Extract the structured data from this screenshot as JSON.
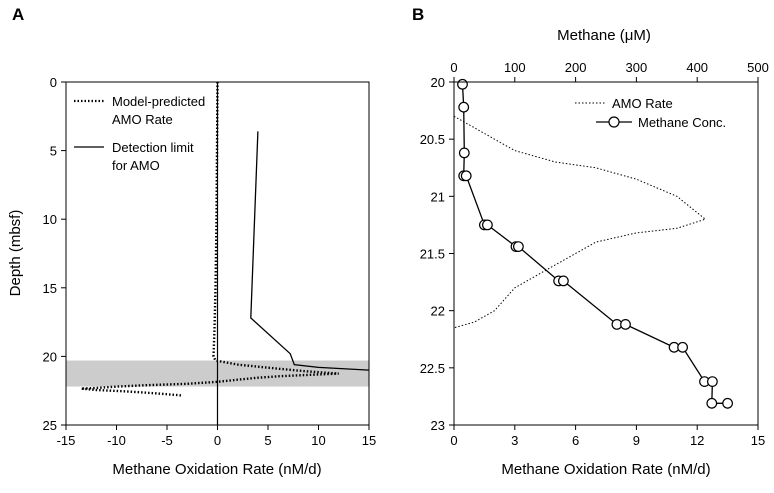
{
  "chart_data": [
    {
      "panel_label": "A",
      "type": "line",
      "xlabel": "Methane Oxidation Rate (nM/d)",
      "ylabel": "Depth (mbsf)",
      "xlim": [
        -15,
        15
      ],
      "ylim": [
        0,
        25
      ],
      "y_inverted": true,
      "x_ticks": [
        "-15",
        "-10",
        "-5",
        "0",
        "5",
        "10",
        "15"
      ],
      "y_ticks": [
        "0",
        "5",
        "10",
        "15",
        "20",
        "25"
      ],
      "shaded_depth_band": [
        20.3,
        22.2
      ],
      "legend": {
        "placement": "top-left",
        "entries": [
          {
            "line1": "Model-predicted",
            "line2": "AMO Rate",
            "style": "dotted"
          },
          {
            "line1": "Detection limit",
            "line2": "for AMO",
            "style": "solid"
          }
        ]
      },
      "series": [
        {
          "style": "dotted",
          "points": [
            [
              0,
              0
            ],
            [
              -0.05,
              5
            ],
            [
              -0.1,
              10
            ],
            [
              -0.2,
              15
            ],
            [
              -0.3,
              18
            ],
            [
              -0.4,
              20
            ],
            [
              -0.2,
              20.3
            ],
            [
              2,
              20.6
            ],
            [
              6,
              20.9
            ],
            [
              9,
              21.1
            ],
            [
              12,
              21.25
            ],
            [
              9,
              21.35
            ],
            [
              6,
              21.45
            ],
            [
              4,
              21.55
            ],
            [
              2,
              21.7
            ],
            [
              0,
              21.85
            ],
            [
              -3,
              22
            ],
            [
              -7,
              22.1
            ],
            [
              -10,
              22.2
            ],
            [
              -12,
              22.3
            ],
            [
              -13.5,
              22.35
            ],
            [
              -12,
              22.45
            ],
            [
              -9,
              22.55
            ],
            [
              -6,
              22.7
            ],
            [
              -3.5,
              22.85
            ]
          ]
        },
        {
          "style": "solid",
          "points": [
            [
              4,
              3.6
            ],
            [
              3.3,
              17.2
            ],
            [
              7.2,
              19.8
            ],
            [
              7.6,
              20.6
            ],
            [
              10,
              20.8
            ],
            [
              15,
              21
            ]
          ]
        }
      ]
    },
    {
      "panel_label": "B",
      "type": "line",
      "xlabel": "Methane Oxidation Rate (nM/d)",
      "x2label": "Methane (μM)",
      "xlim": [
        0,
        15
      ],
      "x2lim": [
        0,
        500
      ],
      "ylim": [
        20,
        23
      ],
      "y_inverted": true,
      "x_ticks": [
        "0",
        "3",
        "6",
        "9",
        "12",
        "15"
      ],
      "x2_ticks": [
        "0",
        "100",
        "200",
        "300",
        "400",
        "500"
      ],
      "y_ticks": [
        "20",
        "20.5",
        "21",
        "21.5",
        "22",
        "22.5",
        "23"
      ],
      "legend": {
        "placement": "top-right",
        "entries": [
          {
            "label": "AMO Rate",
            "style": "dotted"
          },
          {
            "label": "Methane Conc.",
            "style": "solid-circle-markers"
          }
        ]
      },
      "series": [
        {
          "name": "AMO Rate",
          "style": "dotted",
          "points": [
            [
              0,
              20.3
            ],
            [
              1,
              20.4
            ],
            [
              2,
              20.5
            ],
            [
              3,
              20.6
            ],
            [
              5,
              20.7
            ],
            [
              7,
              20.75
            ],
            [
              9,
              20.85
            ],
            [
              11,
              21
            ],
            [
              12.4,
              21.2
            ],
            [
              11,
              21.28
            ],
            [
              9,
              21.32
            ],
            [
              7,
              21.4
            ],
            [
              5,
              21.6
            ],
            [
              3,
              21.8
            ],
            [
              2,
              22
            ],
            [
              1,
              22.1
            ],
            [
              0,
              22.15
            ]
          ]
        },
        {
          "name": "Methane Conc.",
          "style": "solid-circle-markers",
          "axis": "x2",
          "points": [
            [
              14,
              20.02
            ],
            [
              16,
              20.22
            ],
            [
              17,
              20.62
            ],
            [
              16,
              20.82
            ],
            [
              20,
              20.82
            ],
            [
              50,
              21.25
            ],
            [
              55,
              21.25
            ],
            [
              102,
              21.44
            ],
            [
              106,
              21.44
            ],
            [
              172,
              21.74
            ],
            [
              180,
              21.74
            ],
            [
              268,
              22.12
            ],
            [
              282,
              22.12
            ],
            [
              362,
              22.32
            ],
            [
              376,
              22.32
            ],
            [
              412,
              22.62
            ],
            [
              425,
              22.62
            ],
            [
              424,
              22.81
            ],
            [
              450,
              22.81
            ]
          ]
        }
      ]
    }
  ]
}
